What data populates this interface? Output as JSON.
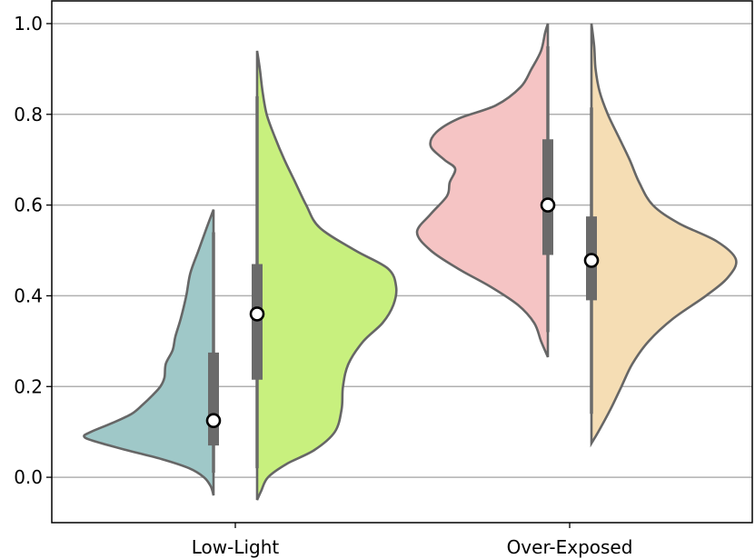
{
  "chart_data": {
    "type": "violin",
    "categories": [
      "Low-Light",
      "Over-Exposed"
    ],
    "ylim": [
      -0.1,
      1.05
    ],
    "yticks": [
      0.0,
      0.2,
      0.4,
      0.6,
      0.8,
      1.0
    ],
    "ytick_labels": [
      "0.0",
      "0.2",
      "0.4",
      "0.6",
      "0.8",
      "1.0"
    ],
    "grid": "horizontal",
    "title": "",
    "xlabel": "",
    "ylabel": "",
    "violins": [
      {
        "category": "Low-Light",
        "side": "left",
        "color": "#9fc8c8",
        "median": 0.125,
        "q1": 0.07,
        "q3": 0.275,
        "whisker_low": 0.01,
        "whisker_high": 0.54,
        "density_range": [
          -0.04,
          0.59
        ],
        "profile": [
          [
            -0.04,
            0
          ],
          [
            -0.02,
            0.02
          ],
          [
            0.0,
            0.07
          ],
          [
            0.02,
            0.18
          ],
          [
            0.04,
            0.38
          ],
          [
            0.06,
            0.64
          ],
          [
            0.08,
            0.88
          ],
          [
            0.09,
            0.95
          ],
          [
            0.1,
            0.9
          ],
          [
            0.12,
            0.74
          ],
          [
            0.14,
            0.6
          ],
          [
            0.16,
            0.52
          ],
          [
            0.18,
            0.45
          ],
          [
            0.2,
            0.39
          ],
          [
            0.22,
            0.36
          ],
          [
            0.25,
            0.35
          ],
          [
            0.28,
            0.3
          ],
          [
            0.31,
            0.28
          ],
          [
            0.35,
            0.24
          ],
          [
            0.4,
            0.2
          ],
          [
            0.45,
            0.17
          ],
          [
            0.5,
            0.11
          ],
          [
            0.55,
            0.05
          ],
          [
            0.59,
            0
          ]
        ]
      },
      {
        "category": "Low-Light",
        "side": "right",
        "color": "#c8f07e",
        "median": 0.36,
        "q1": 0.215,
        "q3": 0.47,
        "whisker_low": 0.02,
        "whisker_high": 0.84,
        "density_range": [
          -0.05,
          0.94
        ],
        "profile": [
          [
            -0.05,
            0
          ],
          [
            -0.03,
            0.03
          ],
          [
            0.0,
            0.08
          ],
          [
            0.03,
            0.22
          ],
          [
            0.06,
            0.42
          ],
          [
            0.1,
            0.57
          ],
          [
            0.15,
            0.62
          ],
          [
            0.2,
            0.63
          ],
          [
            0.25,
            0.67
          ],
          [
            0.3,
            0.78
          ],
          [
            0.34,
            0.92
          ],
          [
            0.38,
            1.0
          ],
          [
            0.42,
            1.02
          ],
          [
            0.46,
            0.96
          ],
          [
            0.5,
            0.72
          ],
          [
            0.55,
            0.46
          ],
          [
            0.6,
            0.36
          ],
          [
            0.65,
            0.28
          ],
          [
            0.7,
            0.2
          ],
          [
            0.75,
            0.13
          ],
          [
            0.8,
            0.07
          ],
          [
            0.85,
            0.04
          ],
          [
            0.9,
            0.02
          ],
          [
            0.94,
            0
          ]
        ]
      },
      {
        "category": "Over-Exposed",
        "side": "left",
        "color": "#f5c4c4",
        "median": 0.6,
        "q1": 0.49,
        "q3": 0.745,
        "whisker_low": 0.32,
        "whisker_high": 0.95,
        "density_range": [
          0.265,
          1.0
        ],
        "profile": [
          [
            0.265,
            0
          ],
          [
            0.3,
            0.05
          ],
          [
            0.34,
            0.1
          ],
          [
            0.38,
            0.22
          ],
          [
            0.42,
            0.42
          ],
          [
            0.46,
            0.66
          ],
          [
            0.5,
            0.86
          ],
          [
            0.54,
            0.96
          ],
          [
            0.58,
            0.86
          ],
          [
            0.62,
            0.74
          ],
          [
            0.65,
            0.72
          ],
          [
            0.68,
            0.68
          ],
          [
            0.7,
            0.76
          ],
          [
            0.73,
            0.86
          ],
          [
            0.76,
            0.82
          ],
          [
            0.79,
            0.66
          ],
          [
            0.82,
            0.38
          ],
          [
            0.86,
            0.2
          ],
          [
            0.9,
            0.12
          ],
          [
            0.94,
            0.05
          ],
          [
            0.98,
            0.02
          ],
          [
            1.0,
            0
          ]
        ]
      },
      {
        "category": "Over-Exposed",
        "side": "right",
        "color": "#f5ddb4",
        "median": 0.478,
        "q1": 0.39,
        "q3": 0.575,
        "whisker_low": 0.14,
        "whisker_high": 0.815,
        "density_range": [
          0.075,
          1.0
        ],
        "profile": [
          [
            0.075,
            0
          ],
          [
            0.1,
            0.05
          ],
          [
            0.15,
            0.14
          ],
          [
            0.2,
            0.22
          ],
          [
            0.25,
            0.3
          ],
          [
            0.3,
            0.42
          ],
          [
            0.35,
            0.6
          ],
          [
            0.4,
            0.84
          ],
          [
            0.44,
            1.0
          ],
          [
            0.48,
            1.06
          ],
          [
            0.52,
            0.92
          ],
          [
            0.56,
            0.64
          ],
          [
            0.6,
            0.45
          ],
          [
            0.65,
            0.35
          ],
          [
            0.7,
            0.28
          ],
          [
            0.75,
            0.2
          ],
          [
            0.8,
            0.12
          ],
          [
            0.85,
            0.06
          ],
          [
            0.9,
            0.03
          ],
          [
            0.95,
            0.02
          ],
          [
            1.0,
            0
          ]
        ]
      }
    ],
    "colors": {
      "box": "#6a6a6a",
      "outline": "#666666",
      "grid": "#b0b0b0"
    }
  }
}
